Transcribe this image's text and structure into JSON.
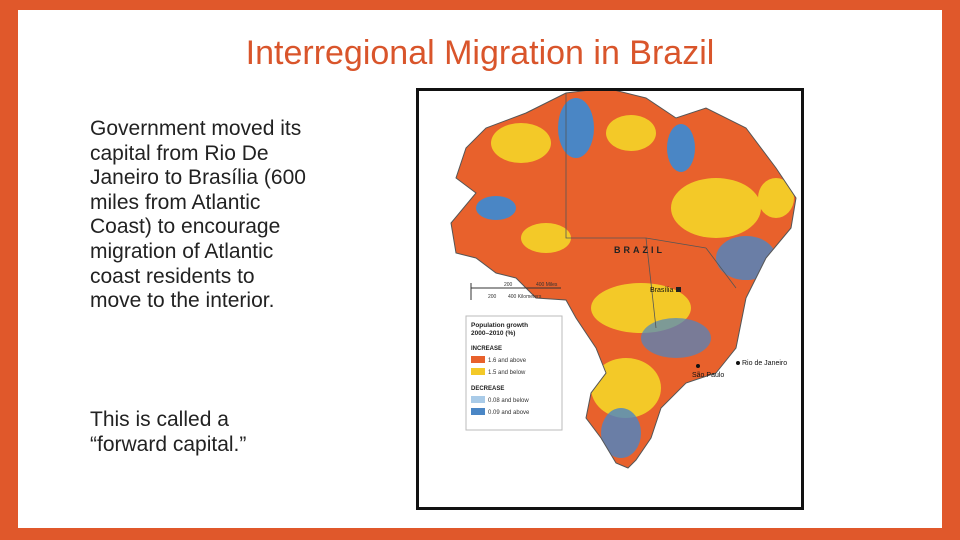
{
  "slide": {
    "title": "Interregional Migration in Brazil",
    "paragraphs": [
      {
        "lines": [
          "Government moved its",
          "capital from Rio De",
          "Janeiro to Brasília (600",
          "miles from Atlantic",
          "Coast) to encourage",
          "migration of Atlantic",
          "coast residents to",
          "move to the interior."
        ]
      },
      {
        "lines": [
          "This is called a",
          "“forward capital.”"
        ]
      }
    ],
    "map": {
      "country_label": "BRAZIL",
      "cities": [
        "Brasília",
        "São Paulo",
        "Rio de Janeiro"
      ],
      "scale": {
        "miles": [
          "200",
          "400 Miles"
        ],
        "kilometers": [
          "200",
          "400 Kilometers"
        ]
      },
      "legend": {
        "title_lines": [
          "Population growth",
          "2000–2010 (%)"
        ],
        "increase": "INCREASE",
        "increase_items": [
          "1.6 and above",
          "1.5 and below"
        ],
        "decrease": "DECREASE",
        "decrease_items": [
          "0.08 and below",
          "0.09 and above"
        ]
      }
    }
  }
}
